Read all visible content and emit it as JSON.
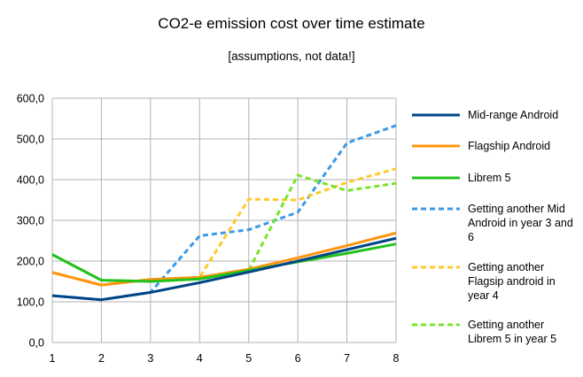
{
  "chart_data": {
    "type": "line",
    "title": "CO2-e emission cost over time estimate",
    "subtitle": "[assumptions, not data!]",
    "x": [
      1,
      2,
      3,
      4,
      5,
      6,
      7,
      8
    ],
    "y_ticks": [
      "0,0",
      "100,0",
      "200,0",
      "300,0",
      "400,0",
      "500,0",
      "600,0"
    ],
    "x_ticks": [
      "1",
      "2",
      "3",
      "4",
      "5",
      "6",
      "7",
      "8"
    ],
    "ylim": [
      0,
      600
    ],
    "grid": true,
    "legend_position": "right",
    "series": [
      {
        "name": "Mid-range Android",
        "color": "#004586",
        "dashed": false,
        "values": [
          115,
          105,
          123,
          147,
          173,
          200,
          228,
          256
        ]
      },
      {
        "name": "Flagship Android",
        "color": "#ff950e",
        "dashed": false,
        "values": [
          172,
          141,
          155,
          160,
          180,
          208,
          238,
          269
        ]
      },
      {
        "name": "Librem 5",
        "color": "#23c21b",
        "dashed": false,
        "values": [
          216,
          153,
          150,
          156,
          177,
          198,
          219,
          242
        ]
      },
      {
        "name": "Getting another Mid Android in year 3 and 6",
        "color": "#3b99e6",
        "dashed": true,
        "values": [
          115,
          105,
          123,
          262,
          277,
          320,
          490,
          533
        ]
      },
      {
        "name": "Getting another Flagsip android in year 4",
        "color": "#ffc82b",
        "dashed": true,
        "values": [
          172,
          141,
          155,
          160,
          352,
          350,
          393,
          427
        ]
      },
      {
        "name": "Getting another Librem 5 in year 5",
        "color": "#78e62c",
        "dashed": true,
        "values": [
          216,
          153,
          150,
          156,
          177,
          411,
          373,
          391
        ]
      }
    ]
  }
}
